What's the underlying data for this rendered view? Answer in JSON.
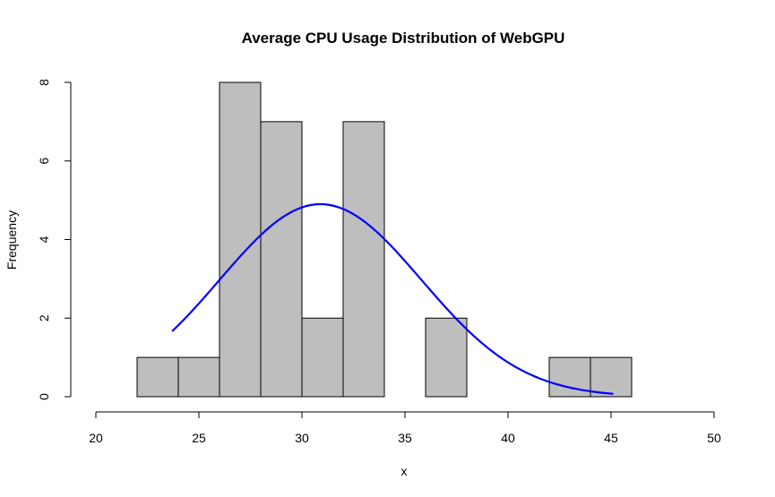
{
  "chart_data": {
    "type": "bar",
    "title": "Average CPU Usage Distribution of WebGPU",
    "xlabel": "x",
    "ylabel": "Frequency",
    "xlim": [
      20,
      50
    ],
    "ylim": [
      0,
      8
    ],
    "x_ticks": [
      "20",
      "25",
      "30",
      "35",
      "40",
      "45",
      "50"
    ],
    "y_ticks": [
      "0",
      "2",
      "4",
      "6",
      "8"
    ],
    "bins": [
      {
        "start": 22,
        "end": 24,
        "count": 1
      },
      {
        "start": 24,
        "end": 26,
        "count": 1
      },
      {
        "start": 26,
        "end": 28,
        "count": 8
      },
      {
        "start": 28,
        "end": 30,
        "count": 7
      },
      {
        "start": 30,
        "end": 32,
        "count": 2
      },
      {
        "start": 32,
        "end": 34,
        "count": 7
      },
      {
        "start": 34,
        "end": 36,
        "count": 0
      },
      {
        "start": 36,
        "end": 38,
        "count": 2
      },
      {
        "start": 38,
        "end": 40,
        "count": 0
      },
      {
        "start": 40,
        "end": 42,
        "count": 0
      },
      {
        "start": 42,
        "end": 44,
        "count": 1
      },
      {
        "start": 44,
        "end": 46,
        "count": 1
      }
    ],
    "bar_color": "#bebebe",
    "density_curve": {
      "type": "normal",
      "mean": 30.9,
      "sd": 4.9,
      "peak_frequency": 4.9,
      "x_range": [
        23.7,
        45.1
      ],
      "color": "#0000ff"
    },
    "grid": false
  }
}
